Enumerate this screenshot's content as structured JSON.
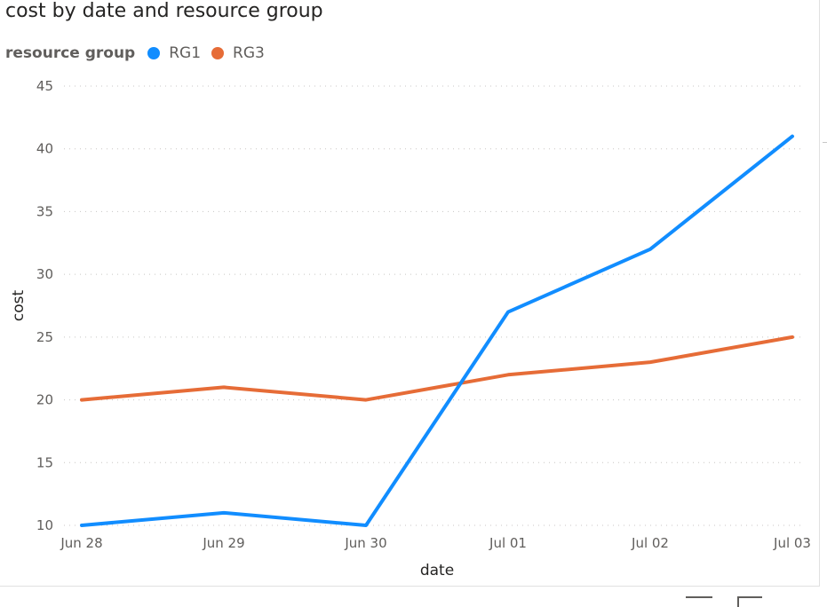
{
  "chart_data": {
    "type": "line",
    "title": "cost by date and resource group",
    "legend_title": "resource group",
    "legend_position": "top-left",
    "xlabel": "date",
    "ylabel": "cost",
    "categories": [
      "Jun 28",
      "Jun 29",
      "Jun 30",
      "Jul 01",
      "Jul 02",
      "Jul 03"
    ],
    "ylim": [
      10,
      45
    ],
    "yticks": [
      10,
      15,
      20,
      25,
      30,
      35,
      40,
      45
    ],
    "grid": true,
    "series": [
      {
        "name": "RG1",
        "color": "#118DFF",
        "values": [
          10,
          11,
          10,
          27,
          32,
          41
        ]
      },
      {
        "name": "RG3",
        "color": "#E66C37",
        "values": [
          20,
          21,
          20,
          22,
          23,
          25
        ]
      }
    ]
  },
  "icons": [
    "filter-icon",
    "focus-mode-icon"
  ]
}
